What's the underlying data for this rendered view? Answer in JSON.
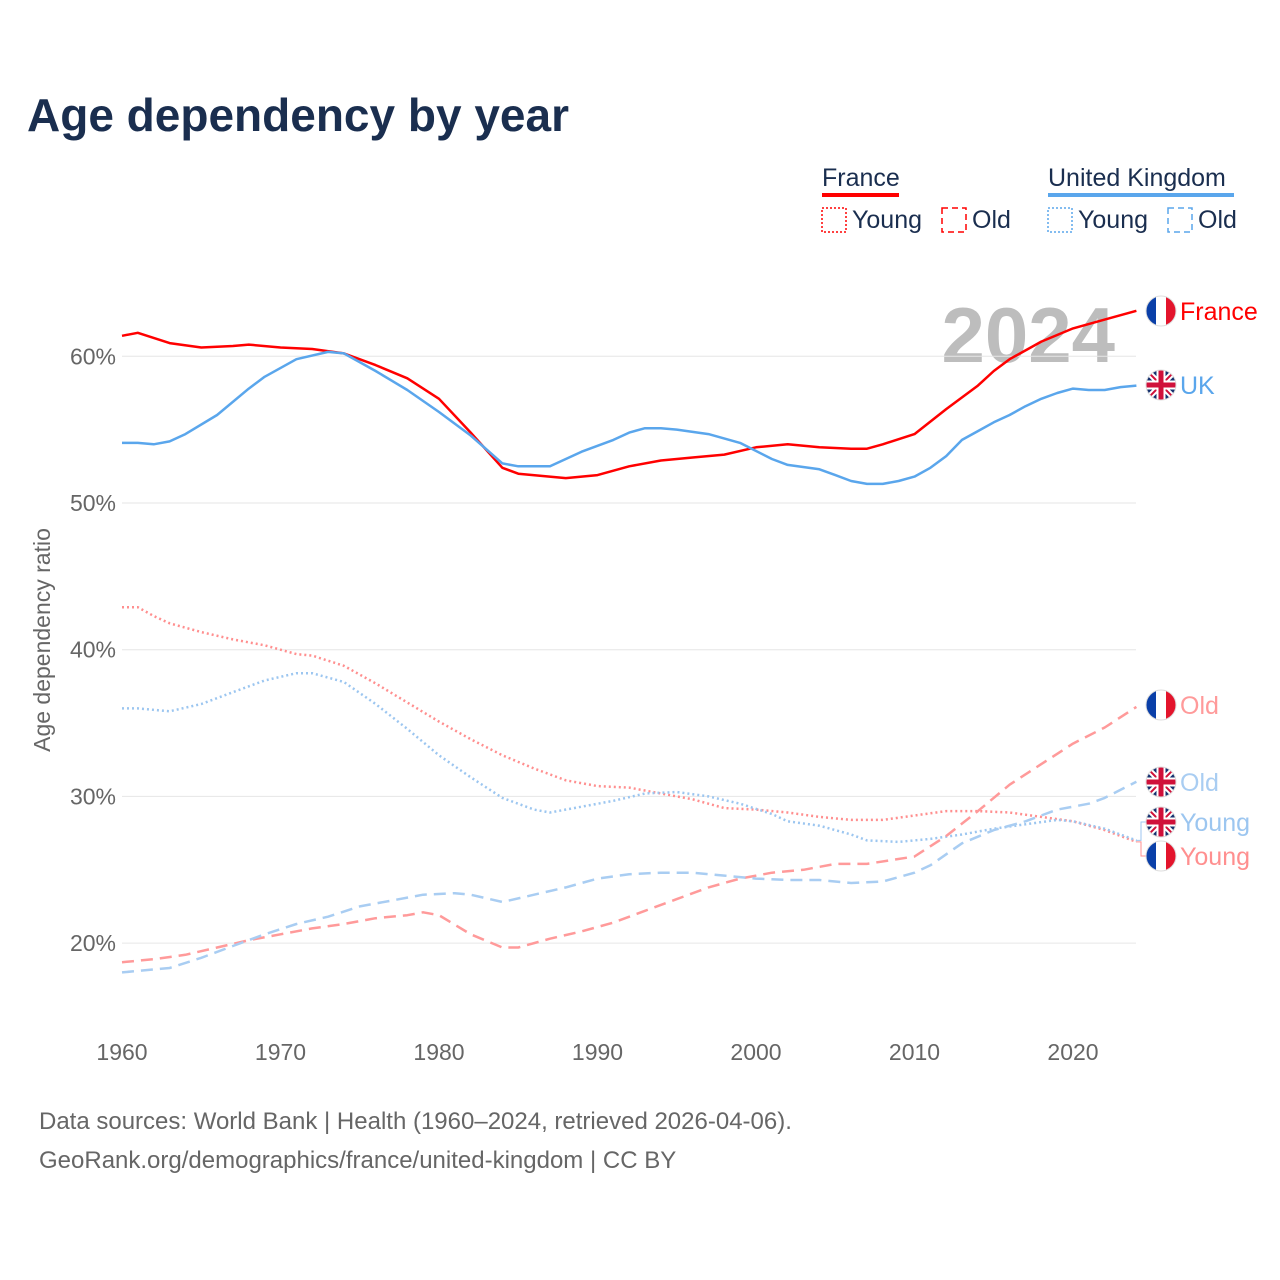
{
  "title": "Age dependency by year",
  "footer": {
    "line1": "Data sources: World Bank | Health (1960–2024, retrieved 2026-04-06).",
    "line2": "GeoRank.org/demographics/france/united-kingdom | CC BY"
  },
  "legend": {
    "groups": [
      {
        "name": "France",
        "color": "#ff0000",
        "items": [
          "Young",
          "Old"
        ]
      },
      {
        "name": "United Kingdom",
        "color": "#5aa6ec",
        "items": [
          "Young",
          "Old"
        ]
      }
    ]
  },
  "year_watermark": "2024",
  "chart_data": {
    "type": "line",
    "title": "Age dependency by year",
    "xlabel": "",
    "ylabel": "Age dependency ratio",
    "xlim": [
      1960,
      2024
    ],
    "ylim": [
      15,
      65
    ],
    "xticks": [
      "1960",
      "1970",
      "1980",
      "1990",
      "2000",
      "2010",
      "2020"
    ],
    "yticks": [
      "20%",
      "30%",
      "40%",
      "50%",
      "60%"
    ],
    "grid": true,
    "series": [
      {
        "name": "France",
        "end_label": "France",
        "country": "fr",
        "style": "solid",
        "color": "#ff0000",
        "x": [
          1960,
          1961,
          1963,
          1965,
          1967,
          1968,
          1970,
          1972,
          1974,
          1976,
          1978,
          1980,
          1982,
          1984,
          1985,
          1988,
          1990,
          1992,
          1994,
          1996,
          1998,
          2000,
          2002,
          2004,
          2006,
          2007,
          2008,
          2010,
          2012,
          2014,
          2015,
          2016,
          2018,
          2020,
          2022,
          2024
        ],
        "y": [
          61.4,
          61.6,
          60.9,
          60.6,
          60.7,
          60.8,
          60.6,
          60.5,
          60.2,
          59.4,
          58.5,
          57.1,
          54.8,
          52.4,
          52.0,
          51.7,
          51.9,
          52.5,
          52.9,
          53.1,
          53.3,
          53.8,
          54.0,
          53.8,
          53.7,
          53.7,
          54.0,
          54.7,
          56.4,
          58.0,
          59.0,
          59.8,
          61.0,
          61.9,
          62.5,
          63.1
        ]
      },
      {
        "name": "United Kingdom",
        "end_label": "UK",
        "country": "uk",
        "style": "solid",
        "color": "#5aa6ec",
        "x": [
          1960,
          1961,
          1962,
          1963,
          1964,
          1966,
          1968,
          1969,
          1971,
          1973,
          1974,
          1976,
          1978,
          1980,
          1982,
          1984,
          1985,
          1987,
          1988,
          1989,
          1991,
          1992,
          1993,
          1994,
          1995,
          1997,
          1999,
          2001,
          2002,
          2004,
          2005,
          2006,
          2007,
          2008,
          2009,
          2010,
          2011,
          2012,
          2013,
          2014,
          2015,
          2016,
          2017,
          2018,
          2019,
          2020,
          2021,
          2022,
          2023,
          2024
        ],
        "y": [
          54.1,
          54.1,
          54.0,
          54.2,
          54.7,
          56.0,
          57.8,
          58.6,
          59.8,
          60.3,
          60.2,
          59.0,
          57.7,
          56.2,
          54.6,
          52.7,
          52.5,
          52.5,
          53.0,
          53.5,
          54.3,
          54.8,
          55.1,
          55.1,
          55.0,
          54.7,
          54.1,
          53.0,
          52.6,
          52.3,
          51.9,
          51.5,
          51.3,
          51.3,
          51.5,
          51.8,
          52.4,
          53.2,
          54.3,
          54.9,
          55.5,
          56.0,
          56.6,
          57.1,
          57.5,
          57.8,
          57.7,
          57.7,
          57.9,
          58.0
        ]
      },
      {
        "name": "France Young",
        "end_label": "Young",
        "country": "fr",
        "style": "dotted",
        "color": "#ff8f8f",
        "x": [
          1960,
          1961,
          1962,
          1963,
          1965,
          1967,
          1969,
          1971,
          1972,
          1974,
          1976,
          1978,
          1980,
          1982,
          1984,
          1986,
          1988,
          1990,
          1992,
          1994,
          1996,
          1998,
          2000,
          2002,
          2004,
          2006,
          2008,
          2010,
          2012,
          2014,
          2016,
          2018,
          2020,
          2022,
          2024
        ],
        "y": [
          42.9,
          42.9,
          42.3,
          41.8,
          41.2,
          40.7,
          40.3,
          39.7,
          39.6,
          38.9,
          37.7,
          36.4,
          35.1,
          33.9,
          32.8,
          31.9,
          31.1,
          30.7,
          30.6,
          30.2,
          29.8,
          29.2,
          29.1,
          28.9,
          28.6,
          28.4,
          28.4,
          28.7,
          29.0,
          29.0,
          28.9,
          28.6,
          28.3,
          27.7,
          26.9
        ]
      },
      {
        "name": "United Kingdom Young",
        "end_label": "Young",
        "country": "uk",
        "style": "dotted",
        "color": "#9cc6f0",
        "x": [
          1960,
          1961,
          1963,
          1965,
          1967,
          1969,
          1971,
          1972,
          1974,
          1976,
          1978,
          1980,
          1982,
          1984,
          1986,
          1987,
          1989,
          1991,
          1993,
          1995,
          1997,
          1999,
          2001,
          2002,
          2004,
          2006,
          2007,
          2009,
          2011,
          2013,
          2015,
          2017,
          2019,
          2020,
          2022,
          2024
        ],
        "y": [
          36.0,
          36.0,
          35.8,
          36.3,
          37.1,
          37.9,
          38.4,
          38.4,
          37.8,
          36.3,
          34.6,
          32.8,
          31.3,
          29.9,
          29.1,
          28.9,
          29.3,
          29.7,
          30.2,
          30.3,
          30.0,
          29.5,
          28.8,
          28.3,
          28.0,
          27.4,
          27.0,
          26.9,
          27.1,
          27.4,
          27.8,
          28.1,
          28.4,
          28.3,
          27.8,
          27.0
        ]
      },
      {
        "name": "France Old",
        "end_label": "Old",
        "country": "fr",
        "style": "dashed",
        "color": "#ff9a9a",
        "x": [
          1960,
          1962,
          1964,
          1966,
          1968,
          1970,
          1972,
          1974,
          1976,
          1978,
          1979,
          1980,
          1982,
          1984,
          1985,
          1987,
          1989,
          1991,
          1993,
          1995,
          1997,
          1999,
          2001,
          2003,
          2005,
          2007,
          2010,
          2012,
          2014,
          2016,
          2018,
          2020,
          2022,
          2024
        ],
        "y": [
          18.7,
          18.9,
          19.2,
          19.7,
          20.2,
          20.6,
          21.0,
          21.3,
          21.7,
          21.9,
          22.1,
          21.9,
          20.6,
          19.7,
          19.7,
          20.3,
          20.8,
          21.4,
          22.2,
          23.0,
          23.8,
          24.4,
          24.8,
          25.0,
          25.4,
          25.4,
          25.9,
          27.3,
          29.0,
          30.8,
          32.2,
          33.6,
          34.7,
          36.1
        ]
      },
      {
        "name": "United Kingdom Old",
        "end_label": "Old",
        "country": "uk",
        "style": "dashed",
        "color": "#a9cdf2",
        "x": [
          1960,
          1963,
          1965,
          1967,
          1969,
          1971,
          1973,
          1975,
          1977,
          1979,
          1981,
          1982,
          1984,
          1986,
          1988,
          1990,
          1992,
          1994,
          1996,
          1998,
          2000,
          2002,
          2004,
          2006,
          2008,
          2010,
          2011,
          2013,
          2015,
          2017,
          2019,
          2021,
          2022,
          2024
        ],
        "y": [
          18.0,
          18.3,
          19.0,
          19.8,
          20.6,
          21.3,
          21.8,
          22.5,
          22.9,
          23.3,
          23.4,
          23.3,
          22.8,
          23.3,
          23.8,
          24.4,
          24.7,
          24.8,
          24.8,
          24.6,
          24.4,
          24.3,
          24.3,
          24.1,
          24.2,
          24.8,
          25.3,
          26.8,
          27.7,
          28.3,
          29.1,
          29.5,
          29.9,
          31.0
        ]
      }
    ]
  }
}
